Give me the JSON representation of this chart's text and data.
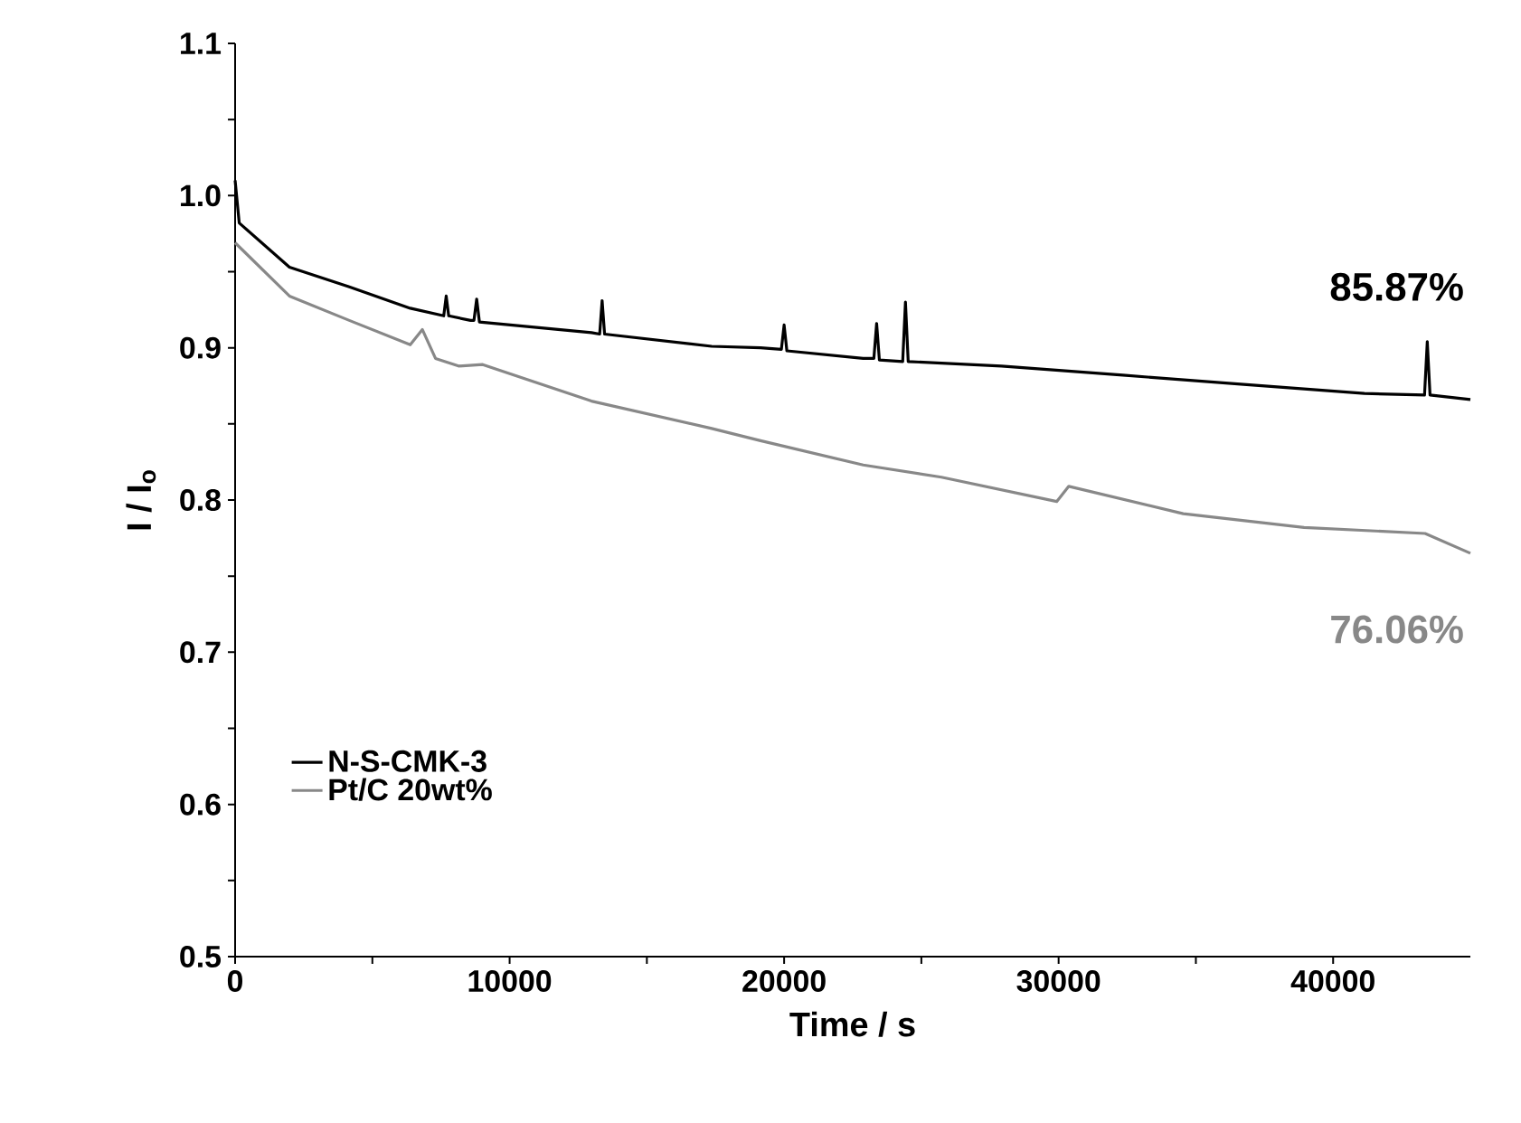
{
  "chart_data": {
    "type": "line",
    "xlabel": "Time / s",
    "ylabel": "I / I$_{o}$",
    "xlim": [
      0,
      45000
    ],
    "ylim": [
      0.5,
      1.1
    ],
    "xticks": [
      0,
      {
        "value": 5000,
        "label": null
      },
      10000,
      {
        "value": 15000,
        "label": null
      },
      20000,
      {
        "value": 25000,
        "label": null
      },
      30000,
      {
        "value": 35000,
        "label": null
      },
      40000
    ],
    "yticks": [
      0.5,
      {
        "value": 0.55,
        "label": null
      },
      0.6,
      {
        "value": 0.65,
        "label": null
      },
      0.7,
      {
        "value": 0.75,
        "label": null
      },
      0.8,
      {
        "value": 0.85,
        "label": null
      },
      0.9,
      {
        "value": 0.95,
        "label": null
      },
      {
        "value": 1.0,
        "label": "1.0"
      },
      {
        "value": 1.05,
        "label": null
      },
      1.1
    ],
    "series": [
      {
        "name": "N-S-CMK-3",
        "color": "#000000",
        "x": [
          0,
          150,
          1980,
          4160,
          6380,
          7600,
          7690,
          7780,
          8580,
          8700,
          8800,
          8900,
          12980,
          13280,
          13370,
          13460,
          17360,
          19140,
          19900,
          20000,
          20100,
          22880,
          23270,
          23370,
          23470,
          24320,
          24420,
          24520,
          27920,
          32340,
          36740,
          41140,
          43330,
          43430,
          43530,
          45000
        ],
        "values": [
          1.01,
          0.982,
          0.953,
          0.94,
          0.926,
          0.921,
          0.934,
          0.921,
          0.918,
          0.918,
          0.932,
          0.917,
          0.91,
          0.909,
          0.931,
          0.909,
          0.901,
          0.9,
          0.899,
          0.915,
          0.898,
          0.893,
          0.893,
          0.916,
          0.892,
          0.891,
          0.93,
          0.891,
          0.888,
          0.882,
          0.876,
          0.87,
          0.869,
          0.904,
          0.869,
          0.866
        ]
      },
      {
        "name": "Pt/C 20wt%",
        "color": "#888888",
        "x": [
          0,
          1980,
          4160,
          6380,
          6820,
          7300,
          8140,
          9020,
          12980,
          17360,
          19140,
          22880,
          25730,
          29930,
          30370,
          34540,
          38940,
          43350,
          45000
        ],
        "values": [
          0.969,
          0.934,
          0.918,
          0.902,
          0.912,
          0.893,
          0.888,
          0.889,
          0.865,
          0.847,
          0.839,
          0.823,
          0.815,
          0.799,
          0.809,
          0.791,
          0.782,
          0.778,
          0.765
        ]
      }
    ],
    "annotations": [
      "85.87%",
      "76.06%"
    ],
    "legend": "bottom left",
    "grid": false,
    "marker": "none",
    "line_style": "solid"
  }
}
